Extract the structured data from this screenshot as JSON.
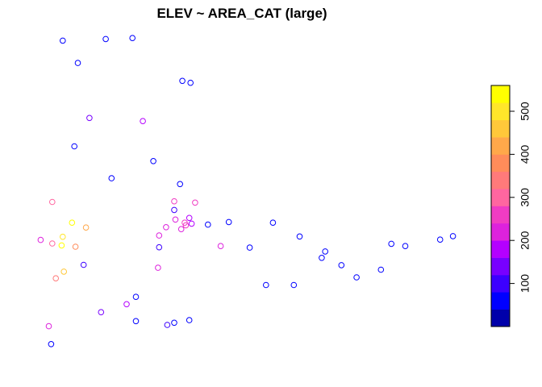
{
  "chart_data": {
    "type": "scatter",
    "title": "ELEV ~ AREA_CAT (large)",
    "xlabel": "",
    "ylabel": "",
    "axes_shown": false,
    "grid": false,
    "marker": "open-circle",
    "color_variable": "ELEV",
    "colorbar": {
      "placement": "right",
      "range": [
        0,
        560
      ],
      "breaks": [
        0,
        40,
        80,
        120,
        160,
        200,
        240,
        280,
        320,
        360,
        400,
        440,
        480,
        520,
        560
      ],
      "colors": [
        "#0000AA",
        "#0000FF",
        "#3C00FF",
        "#7800FF",
        "#B400FF",
        "#DD22DD",
        "#F03CC3",
        "#FF66A0",
        "#FF7A7A",
        "#FF8C5A",
        "#FFA84A",
        "#FFC83A",
        "#FFE62A",
        "#FFFF00"
      ],
      "ticks": [
        100,
        200,
        300,
        400,
        500
      ],
      "tick_labels": [
        "100",
        "200",
        "300",
        "400",
        "500"
      ]
    },
    "points": [
      {
        "x": 0.7,
        "y": 93.0,
        "elev": 60
      },
      {
        "x": 2.0,
        "y": 86.0,
        "elev": 60
      },
      {
        "x": 3.0,
        "y": 68.8,
        "elev": 120
      },
      {
        "x": 4.4,
        "y": 93.5,
        "elev": 60
      },
      {
        "x": 6.7,
        "y": 93.8,
        "elev": 60
      },
      {
        "x": 7.6,
        "y": 67.8,
        "elev": 160
      },
      {
        "x": 11.0,
        "y": 80.4,
        "elev": 60
      },
      {
        "x": 11.7,
        "y": 79.8,
        "elev": 60
      },
      {
        "x": 1.7,
        "y": 59.9,
        "elev": 60
      },
      {
        "x": 4.9,
        "y": 49.9,
        "elev": 60
      },
      {
        "x": 8.5,
        "y": 55.3,
        "elev": 60
      },
      {
        "x": 10.8,
        "y": 48.1,
        "elev": 60
      },
      {
        "x": 10.3,
        "y": 40.0,
        "elev": 80
      },
      {
        "x": 9.0,
        "y": 28.3,
        "elev": 80
      },
      {
        "x": 13.2,
        "y": 35.4,
        "elev": 60
      },
      {
        "x": 15.0,
        "y": 36.2,
        "elev": 60
      },
      {
        "x": 16.8,
        "y": 28.2,
        "elev": 60
      },
      {
        "x": 18.8,
        "y": 36.0,
        "elev": 60
      },
      {
        "x": 21.1,
        "y": 31.7,
        "elev": 60
      },
      {
        "x": 23.3,
        "y": 27.0,
        "elev": 60
      },
      {
        "x": 23.0,
        "y": 25.0,
        "elev": 60
      },
      {
        "x": 24.7,
        "y": 22.7,
        "elev": 60
      },
      {
        "x": 20.6,
        "y": 16.5,
        "elev": 60
      },
      {
        "x": 26.0,
        "y": 18.9,
        "elev": 60
      },
      {
        "x": 29.0,
        "y": 29.4,
        "elev": 60
      },
      {
        "x": 30.2,
        "y": 28.7,
        "elev": 60
      },
      {
        "x": 33.2,
        "y": 30.7,
        "elev": 60
      },
      {
        "x": 34.3,
        "y": 31.8,
        "elev": 60
      },
      {
        "x": 28.1,
        "y": 21.3,
        "elev": 60
      },
      {
        "x": 18.2,
        "y": 16.5,
        "elev": 60
      },
      {
        "x": 2.5,
        "y": 22.8,
        "elev": 80
      },
      {
        "x": 7.0,
        "y": 12.8,
        "elev": 60
      },
      {
        "x": 7.0,
        "y": 5.2,
        "elev": 60
      },
      {
        "x": 4.0,
        "y": 8.0,
        "elev": 150
      },
      {
        "x": 6.2,
        "y": 10.5,
        "elev": 180
      },
      {
        "x": 9.7,
        "y": 4.0,
        "elev": 80
      },
      {
        "x": 10.3,
        "y": 4.7,
        "elev": 60
      },
      {
        "x": 11.6,
        "y": 5.5,
        "elev": 60
      },
      {
        "x": -0.5,
        "y": 3.6,
        "elev": 220
      },
      {
        "x": -0.3,
        "y": -2.0,
        "elev": 60
      },
      {
        "x": -1.2,
        "y": 30.6,
        "elev": 200
      },
      {
        "x": -0.2,
        "y": 29.5,
        "elev": 300
      },
      {
        "x": 0.6,
        "y": 28.9,
        "elev": 520
      },
      {
        "x": 1.8,
        "y": 28.5,
        "elev": 380
      },
      {
        "x": 0.1,
        "y": 18.6,
        "elev": 330
      },
      {
        "x": 0.8,
        "y": 20.7,
        "elev": 440
      },
      {
        "x": 0.7,
        "y": 31.6,
        "elev": 480
      },
      {
        "x": 1.5,
        "y": 36.0,
        "elev": 520
      },
      {
        "x": 2.7,
        "y": 34.5,
        "elev": 420
      },
      {
        "x": -0.2,
        "y": 42.5,
        "elev": 300
      },
      {
        "x": 10.3,
        "y": 42.7,
        "elev": 240
      },
      {
        "x": 12.1,
        "y": 42.3,
        "elev": 240
      },
      {
        "x": 10.4,
        "y": 37.0,
        "elev": 200
      },
      {
        "x": 11.2,
        "y": 36.0,
        "elev": 270
      },
      {
        "x": 11.3,
        "y": 35.2,
        "elev": 240
      },
      {
        "x": 10.9,
        "y": 34.0,
        "elev": 220
      },
      {
        "x": 9.6,
        "y": 34.6,
        "elev": 220
      },
      {
        "x": 9.0,
        "y": 32.0,
        "elev": 200
      },
      {
        "x": 11.6,
        "y": 37.5,
        "elev": 160
      },
      {
        "x": 11.8,
        "y": 35.7,
        "elev": 180
      },
      {
        "x": 8.9,
        "y": 21.9,
        "elev": 200
      },
      {
        "x": 14.3,
        "y": 28.7,
        "elev": 210
      }
    ]
  }
}
